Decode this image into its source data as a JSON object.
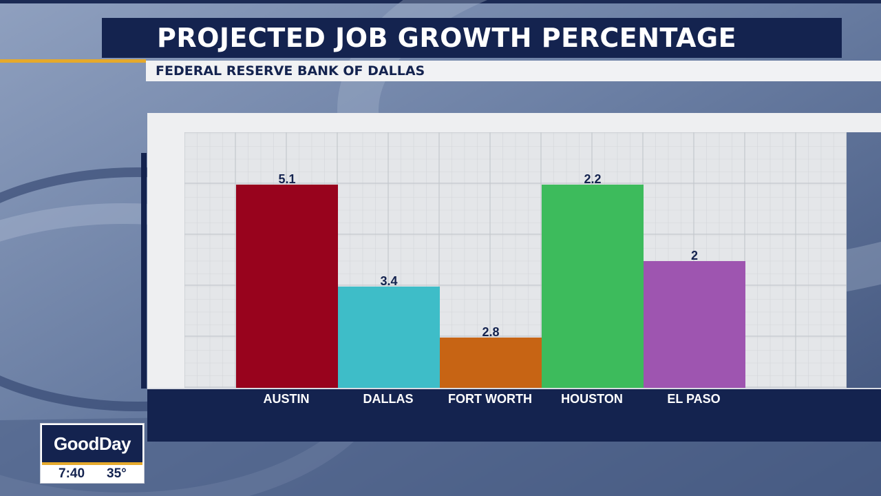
{
  "title": "PROJECTED JOB GROWTH PERCENTAGE",
  "source": "FEDERAL RESERVE BANK OF DALLAS",
  "colors": {
    "navy": "#14234f",
    "gold": "#e5a92c",
    "grid_bg": "#e4e6e9",
    "grid_major": "#c4c8cd",
    "grid_minor": "#d3d6da"
  },
  "chart_data": {
    "type": "bar",
    "title": "PROJECTED JOB GROWTH PERCENTAGE",
    "subtitle": "FEDERAL RESERVE BANK OF DALLAS",
    "categories": [
      "AUSTIN",
      "DALLAS",
      "FORT WORTH",
      "HOUSTON",
      "EL PASO"
    ],
    "values": [
      5.1,
      3.4,
      2.8,
      2.2,
      2
    ],
    "display_level": [
      0.8,
      0.4,
      0.2,
      0.8,
      0.5
    ],
    "bar_colors": [
      "#98031d",
      "#3ebdc8",
      "#c76414",
      "#3dbb5c",
      "#9e55b0"
    ],
    "value_labels": [
      "5.1",
      "3.4",
      "2.8",
      "2.2",
      "2"
    ],
    "xlabel": "",
    "ylabel": "",
    "grid": true,
    "legend": "none"
  },
  "logo": {
    "name": "GoodDay",
    "time": "7:40",
    "temperature": "35°"
  }
}
